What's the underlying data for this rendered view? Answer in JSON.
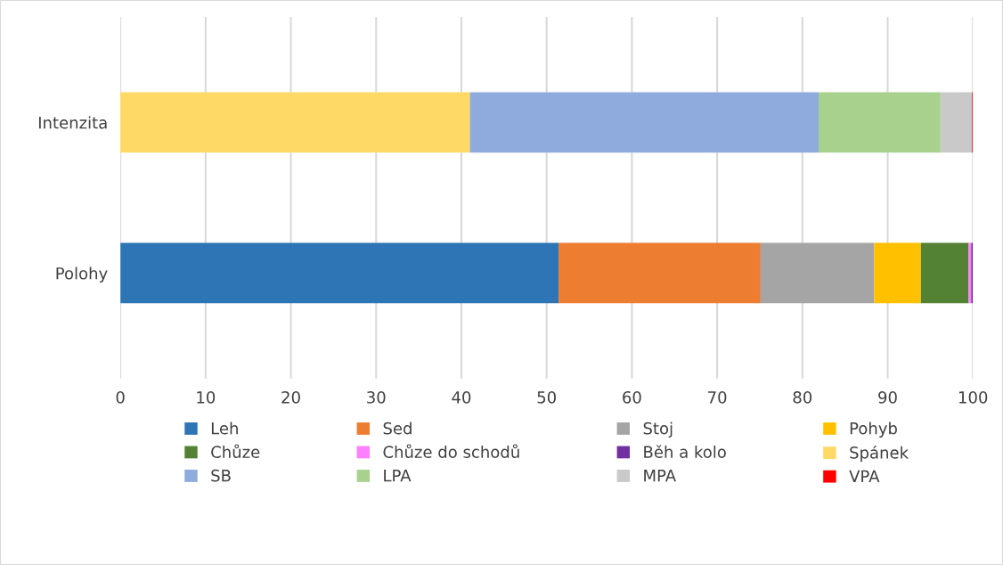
{
  "chart_data": {
    "type": "bar",
    "orientation": "horizontal",
    "stacked": true,
    "categories": [
      "Intenzita",
      "Polohy"
    ],
    "series": [
      {
        "name": "Leh",
        "color": "#2e75b6",
        "values": [
          null,
          51.4
        ]
      },
      {
        "name": "Sed",
        "color": "#ed7d31",
        "values": [
          null,
          23.7
        ]
      },
      {
        "name": "Stoj",
        "color": "#a5a5a5",
        "values": [
          null,
          13.3
        ]
      },
      {
        "name": "Pohyb",
        "color": "#ffc000",
        "values": [
          null,
          5.5
        ]
      },
      {
        "name": "Chůze",
        "color": "#548235",
        "values": [
          null,
          5.6
        ]
      },
      {
        "name": "Chůze do schodů",
        "color": "#ff80ff",
        "values": [
          null,
          0.3
        ]
      },
      {
        "name": "Běh a kolo",
        "color": "#7030a0",
        "values": [
          null,
          0.2
        ]
      },
      {
        "name": "Spánek",
        "color": "#ffd966",
        "values": [
          41.0,
          null
        ]
      },
      {
        "name": "SB",
        "color": "#8faadc",
        "values": [
          40.9,
          null
        ]
      },
      {
        "name": "LPA",
        "color": "#a9d18e",
        "values": [
          14.3,
          null
        ]
      },
      {
        "name": "MPA",
        "color": "#c9c9c9",
        "values": [
          3.7,
          null
        ]
      },
      {
        "name": "VPA",
        "color": "#ff0000",
        "values": [
          0.1,
          null
        ]
      }
    ],
    "xlim": [
      0,
      100
    ],
    "xticks": [
      0,
      10,
      20,
      30,
      40,
      50,
      60,
      70,
      80,
      90,
      100
    ],
    "grid": "x",
    "legend": "bottom"
  }
}
